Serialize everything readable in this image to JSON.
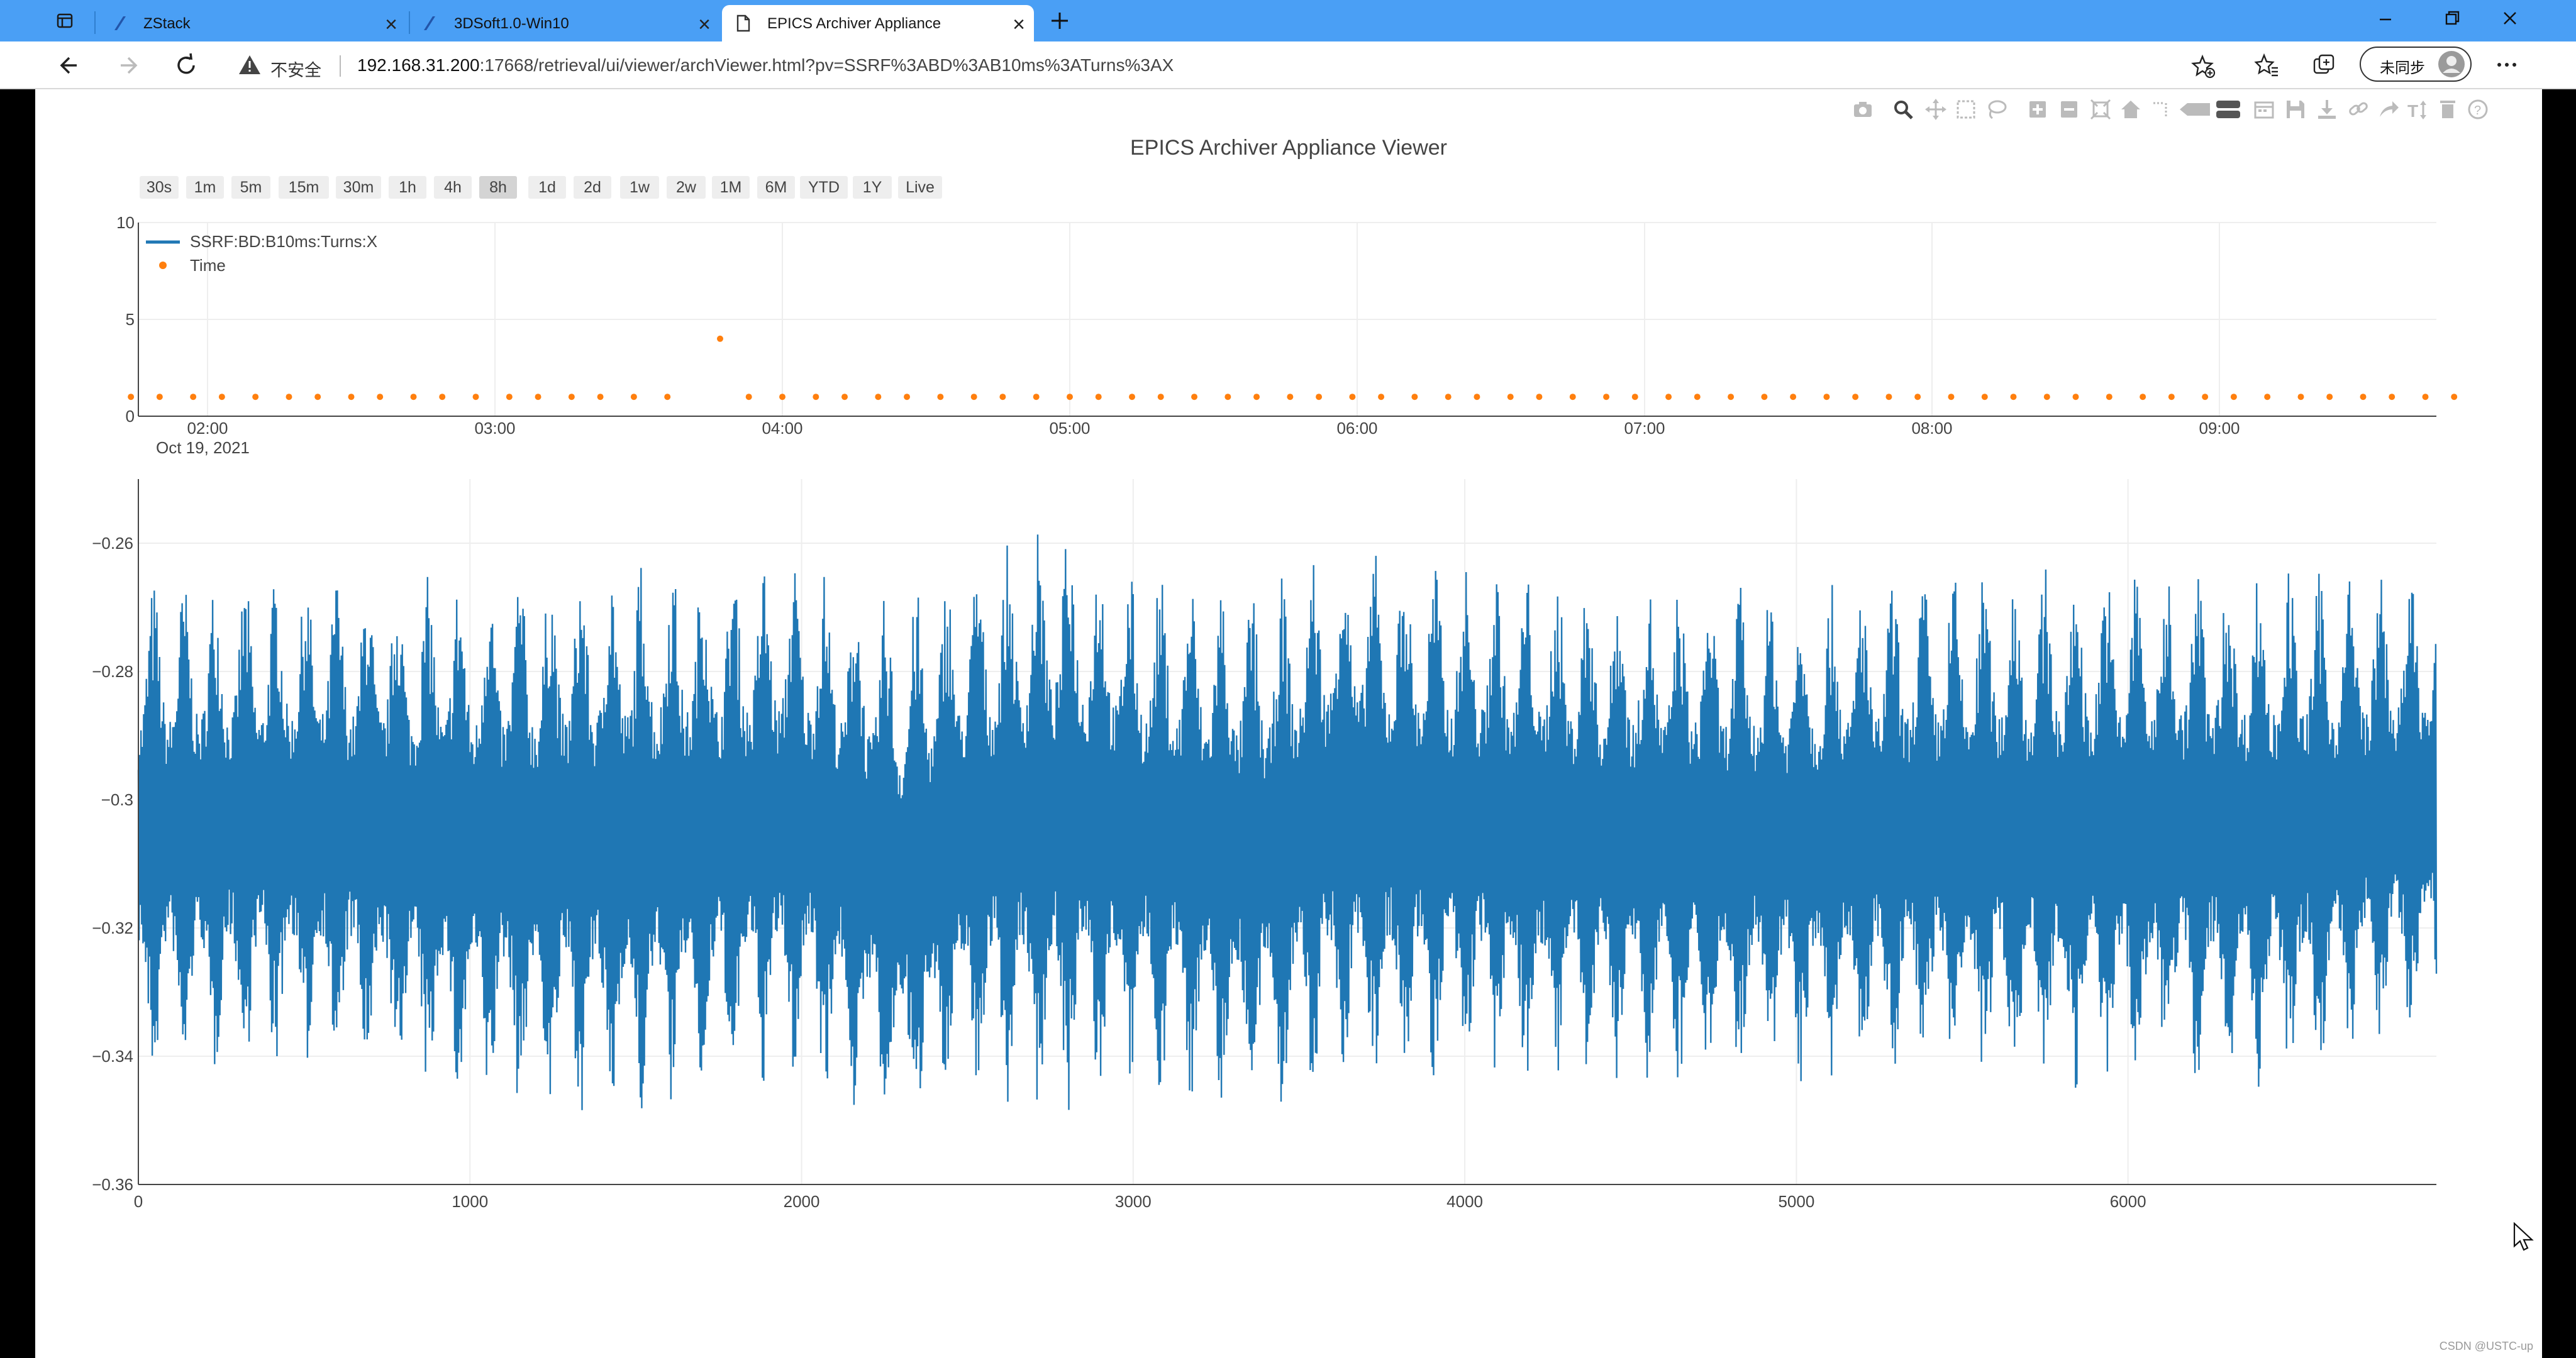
{
  "browser": {
    "tabs": [
      {
        "label": "ZStack",
        "active": false,
        "icon": "zstack-logo-icon"
      },
      {
        "label": "3DSoft1.0-Win10",
        "active": false,
        "icon": "zstack-logo-icon"
      },
      {
        "label": "EPICS Archiver Appliance",
        "active": true,
        "icon": "page-icon"
      }
    ],
    "insecure_label": "不安全",
    "url_host": "192.168.31.200",
    "url_rest": ":17668/retrieval/ui/viewer/archViewer.html?pv=SSRF%3ABD%3AB10ms%3ATurns%3AX",
    "sync_label": "未同步",
    "window_controls": [
      "minimize-icon",
      "restore-icon",
      "close-icon"
    ]
  },
  "page": {
    "title": "EPICS Archiver Appliance Viewer",
    "range_buttons": [
      "30s",
      "1m",
      "5m",
      "15m",
      "30m",
      "1h",
      "4h",
      "8h",
      "1d",
      "2d",
      "1w",
      "2w",
      "1M",
      "6M",
      "YTD",
      "1Y",
      "Live"
    ],
    "active_range": "8h",
    "watermark": "CSDN @USTC-up"
  },
  "chart_data": [
    {
      "type": "scatter",
      "name": "Time",
      "color": "#ff7f0e",
      "x_ticks": [
        "02:00",
        "03:00",
        "04:00",
        "05:00",
        "06:00",
        "07:00",
        "08:00",
        "09:00"
      ],
      "x_date_label": "Oct 19, 2021",
      "y_ticks": [
        0,
        5,
        10
      ],
      "ylim": [
        0,
        10
      ],
      "points": [
        {
          "t": "01:44",
          "y": 1
        },
        {
          "t": "01:50",
          "y": 1
        },
        {
          "t": "01:57",
          "y": 1
        },
        {
          "t": "02:03",
          "y": 1
        },
        {
          "t": "02:10",
          "y": 1
        },
        {
          "t": "02:17",
          "y": 1
        },
        {
          "t": "02:23",
          "y": 1
        },
        {
          "t": "02:30",
          "y": 1
        },
        {
          "t": "02:36",
          "y": 1
        },
        {
          "t": "02:43",
          "y": 1
        },
        {
          "t": "02:49",
          "y": 1
        },
        {
          "t": "02:56",
          "y": 1
        },
        {
          "t": "03:03",
          "y": 1
        },
        {
          "t": "03:09",
          "y": 1
        },
        {
          "t": "03:16",
          "y": 1
        },
        {
          "t": "03:22",
          "y": 1
        },
        {
          "t": "03:29",
          "y": 1
        },
        {
          "t": "03:36",
          "y": 1
        },
        {
          "t": "03:47",
          "y": 4
        },
        {
          "t": "03:53",
          "y": 1
        },
        {
          "t": "04:00",
          "y": 1
        },
        {
          "t": "04:07",
          "y": 1
        },
        {
          "t": "04:13",
          "y": 1
        },
        {
          "t": "04:20",
          "y": 1
        },
        {
          "t": "04:26",
          "y": 1
        },
        {
          "t": "04:33",
          "y": 1
        },
        {
          "t": "04:40",
          "y": 1
        },
        {
          "t": "04:46",
          "y": 1
        },
        {
          "t": "04:53",
          "y": 1
        },
        {
          "t": "05:00",
          "y": 1
        },
        {
          "t": "05:06",
          "y": 1
        },
        {
          "t": "05:13",
          "y": 1
        },
        {
          "t": "05:19",
          "y": 1
        },
        {
          "t": "05:26",
          "y": 1
        },
        {
          "t": "05:33",
          "y": 1
        },
        {
          "t": "05:39",
          "y": 1
        },
        {
          "t": "05:46",
          "y": 1
        },
        {
          "t": "05:52",
          "y": 1
        },
        {
          "t": "05:59",
          "y": 1
        },
        {
          "t": "06:05",
          "y": 1
        },
        {
          "t": "06:12",
          "y": 1
        },
        {
          "t": "06:19",
          "y": 1
        },
        {
          "t": "06:25",
          "y": 1
        },
        {
          "t": "06:32",
          "y": 1
        },
        {
          "t": "06:38",
          "y": 1
        },
        {
          "t": "06:45",
          "y": 1
        },
        {
          "t": "06:52",
          "y": 1
        },
        {
          "t": "06:58",
          "y": 1
        },
        {
          "t": "07:05",
          "y": 1
        },
        {
          "t": "07:11",
          "y": 1
        },
        {
          "t": "07:18",
          "y": 1
        },
        {
          "t": "07:25",
          "y": 1
        },
        {
          "t": "07:31",
          "y": 1
        },
        {
          "t": "07:38",
          "y": 1
        },
        {
          "t": "07:44",
          "y": 1
        },
        {
          "t": "07:51",
          "y": 1
        },
        {
          "t": "07:57",
          "y": 1
        },
        {
          "t": "08:04",
          "y": 1
        },
        {
          "t": "08:11",
          "y": 1
        },
        {
          "t": "08:17",
          "y": 1
        },
        {
          "t": "08:24",
          "y": 1
        },
        {
          "t": "08:30",
          "y": 1
        },
        {
          "t": "08:37",
          "y": 1
        },
        {
          "t": "08:44",
          "y": 1
        },
        {
          "t": "08:50",
          "y": 1
        },
        {
          "t": "08:57",
          "y": 1
        },
        {
          "t": "09:03",
          "y": 1
        },
        {
          "t": "09:10",
          "y": 1
        },
        {
          "t": "09:17",
          "y": 1
        },
        {
          "t": "09:23",
          "y": 1
        },
        {
          "t": "09:30",
          "y": 1
        },
        {
          "t": "09:36",
          "y": 1
        },
        {
          "t": "09:43",
          "y": 1
        },
        {
          "t": "09:49",
          "y": 1
        }
      ]
    },
    {
      "type": "line",
      "name": "SSRF:BD:B10ms:Turns:X",
      "color": "#1f77b4",
      "x_ticks": [
        0,
        1000,
        2000,
        3000,
        4000,
        5000,
        6000
      ],
      "y_ticks": [
        -0.26,
        -0.28,
        -0.3,
        -0.32,
        -0.34,
        -0.36
      ],
      "y_tick_labels": [
        "−0.26",
        "−0.28",
        "−0.3",
        "−0.32",
        "−0.34",
        "−0.36"
      ],
      "xlim": [
        0,
        6930
      ],
      "ylim": [
        -0.36,
        -0.25
      ],
      "mean": -0.302,
      "oscillation_period_samples": 92,
      "envelope": {
        "x": [
          0,
          500,
          1000,
          1500,
          2000,
          2300,
          2500,
          2800,
          3000,
          3400,
          3600,
          4000,
          4500,
          5000,
          5500,
          6000,
          6500,
          6930
        ],
        "upper": [
          -0.266,
          -0.265,
          -0.265,
          -0.262,
          -0.263,
          -0.268,
          -0.263,
          -0.256,
          -0.264,
          -0.267,
          -0.259,
          -0.263,
          -0.266,
          -0.267,
          -0.264,
          -0.263,
          -0.264,
          -0.266
        ],
        "lower": [
          -0.344,
          -0.342,
          -0.348,
          -0.35,
          -0.343,
          -0.355,
          -0.346,
          -0.349,
          -0.345,
          -0.349,
          -0.345,
          -0.345,
          -0.344,
          -0.344,
          -0.345,
          -0.346,
          -0.345,
          -0.335
        ]
      }
    }
  ]
}
